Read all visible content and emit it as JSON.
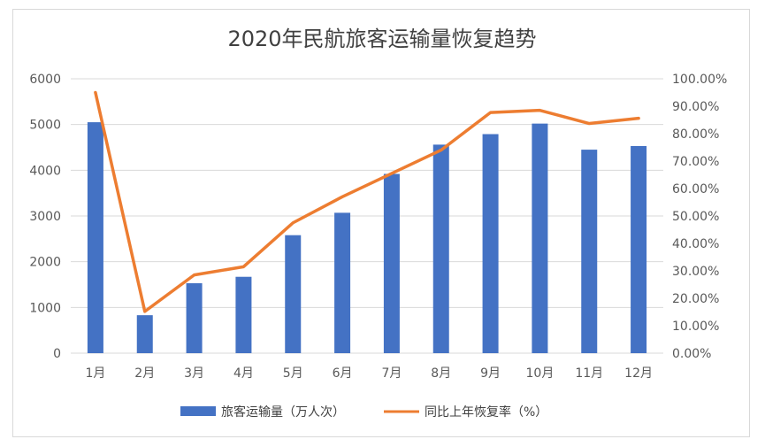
{
  "chart_data": {
    "type": "bar",
    "title": "2020年民航旅客运输量恢复趋势",
    "categories": [
      "1月",
      "2月",
      "3月",
      "4月",
      "5月",
      "6月",
      "7月",
      "8月",
      "9月",
      "10月",
      "11月",
      "12月"
    ],
    "series": [
      {
        "name": "旅客运输量（万人次）",
        "type": "bar",
        "axis": "left",
        "color": "#4472C4",
        "values": [
          5050,
          830,
          1530,
          1670,
          2580,
          3070,
          3920,
          4560,
          4790,
          5020,
          4450,
          4530
        ]
      },
      {
        "name": "同比上年恢复率（%）",
        "type": "line",
        "axis": "right",
        "color": "#ED7D31",
        "values": [
          95.0,
          15.2,
          28.5,
          31.5,
          47.5,
          57.0,
          65.5,
          74.0,
          87.7,
          88.5,
          83.7,
          85.6
        ]
      }
    ],
    "y_left": {
      "min": 0,
      "max": 6000,
      "ticks": [
        "0",
        "1000",
        "2000",
        "3000",
        "4000",
        "5000",
        "6000"
      ]
    },
    "y_right": {
      "min": 0,
      "max": 100,
      "ticks": [
        "0.00%",
        "10.00%",
        "20.00%",
        "30.00%",
        "40.00%",
        "50.00%",
        "60.00%",
        "70.00%",
        "80.00%",
        "90.00%",
        "100.00%"
      ]
    },
    "grid": true,
    "legend_position": "bottom"
  }
}
